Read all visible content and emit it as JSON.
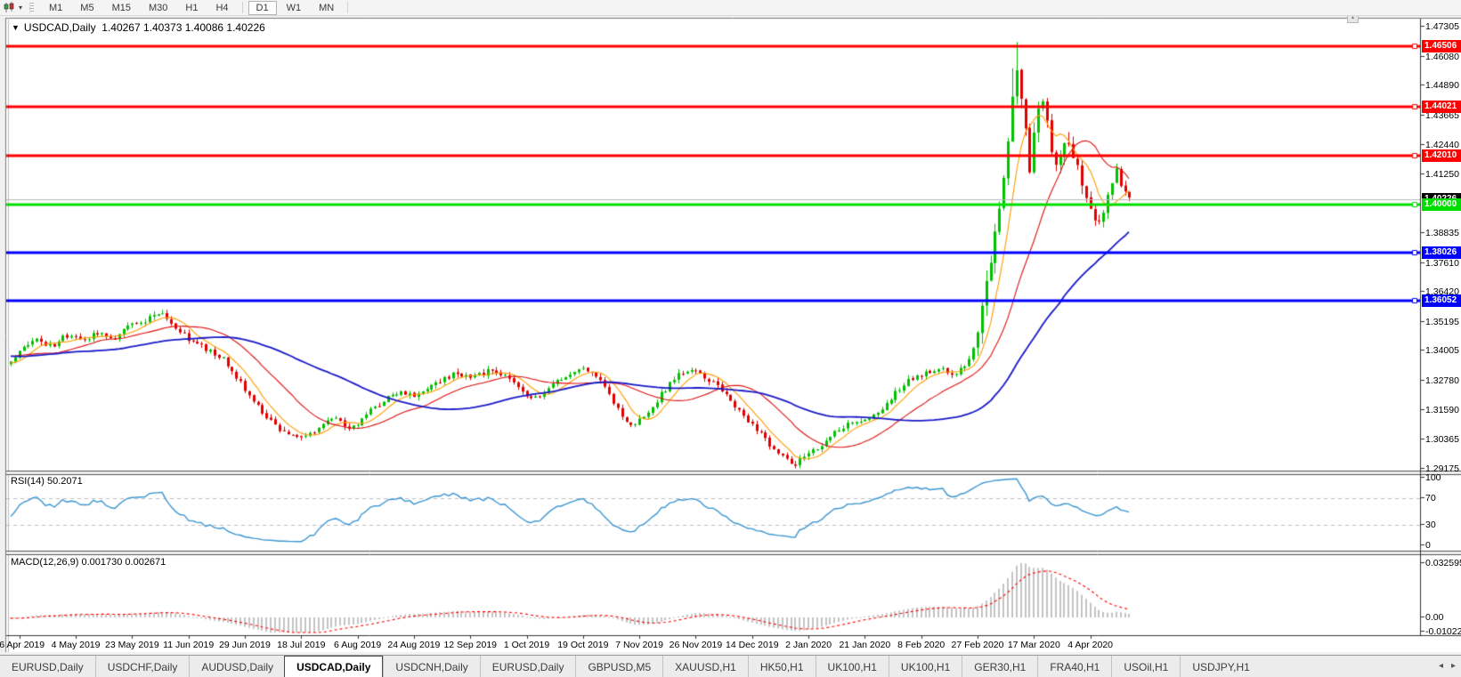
{
  "icons": {
    "dropdown": "▾",
    "title_marker": "▼",
    "scroll_left": "◂",
    "scroll_right": "▸",
    "scroll_stub": "▴"
  },
  "toolbar": {
    "timeframes": [
      "M1",
      "M5",
      "M15",
      "M30",
      "H1",
      "H4",
      "D1",
      "W1",
      "MN"
    ],
    "active": "D1"
  },
  "chart": {
    "title_symbol": "USDCAD,Daily",
    "ohlc_text": "1.40267 1.40373 1.40086 1.40226",
    "y_ticks": [
      "1.47305",
      "1.46080",
      "1.44890",
      "1.43665",
      "1.42440",
      "1.41250",
      "1.38835",
      "1.37610",
      "1.36420",
      "1.35195",
      "1.34005",
      "1.32780",
      "1.31590",
      "1.30365",
      "1.29175"
    ],
    "x_dates": [
      "16 Apr 2019",
      "4 May 2019",
      "23 May 2019",
      "11 Jun 2019",
      "29 Jun 2019",
      "18 Jul 2019",
      "6 Aug 2019",
      "24 Aug 2019",
      "12 Sep 2019",
      "1 Oct 2019",
      "19 Oct 2019",
      "7 Nov 2019",
      "26 Nov 2019",
      "14 Dec 2019",
      "2 Jan 2020",
      "21 Jan 2020",
      "8 Feb 2020",
      "27 Feb 2020",
      "17 Mar 2020",
      "4 Apr 2020"
    ],
    "hlines": [
      {
        "price": 1.46506,
        "label": "1.46506",
        "color": "#ff0000"
      },
      {
        "price": 1.44021,
        "label": "1.44021",
        "color": "#ff0000"
      },
      {
        "price": 1.4201,
        "label": "1.42010",
        "color": "#ff0000"
      },
      {
        "price": 1.4,
        "label": "1.40000",
        "color": "#00dd00"
      },
      {
        "price": 1.38026,
        "label": "1.38026",
        "color": "#0000ff"
      },
      {
        "price": 1.36052,
        "label": "1.36052",
        "color": "#0000ff"
      }
    ],
    "current_price": {
      "value": 1.40226,
      "label": "1.40226",
      "line_color": "#b8b8b8",
      "tag_bg": "#000000"
    },
    "colors": {
      "bull": "#00c000",
      "bear": "#e00000",
      "ma_fast": "#ff9c00",
      "ma_mid": "#e01010",
      "ma_slow": "#1a1ac8"
    }
  },
  "rsi": {
    "label": "RSI(14) 50.2071",
    "levels": [
      "100",
      "70",
      "30",
      "0"
    ],
    "line_color": "#3c96d2",
    "level_line_color": "#bdbdbd"
  },
  "macd": {
    "label": "MACD(12,26,9) 0.001730 0.002671",
    "axis": [
      "0.032595",
      "0.00",
      "-0.010227"
    ],
    "hist_color": "#c4c4c4",
    "signal_color": "#ff0000"
  },
  "tabs": {
    "items": [
      "EURUSD,Daily",
      "USDCHF,Daily",
      "AUDUSD,Daily",
      "USDCAD,Daily",
      "USDCNH,Daily",
      "EURUSD,Daily",
      "GBPUSD,M5",
      "XAUUSD,H1",
      "HK50,H1",
      "UK100,H1",
      "UK100,H1",
      "GER30,H1",
      "FRA40,H1",
      "USOil,H1",
      "USDJPY,H1"
    ],
    "active_index": 3
  },
  "chart_data": {
    "type": "candlestick",
    "symbol": "USDCAD",
    "timeframe": "Daily",
    "current_ohlc": {
      "open": 1.40267,
      "high": 1.40373,
      "low": 1.40086,
      "close": 1.40226
    },
    "y_range": [
      1.29175,
      1.47305
    ],
    "extremes": {
      "high": 1.4668,
      "low": 1.2918
    },
    "levels": [
      1.46506,
      1.44021,
      1.4201,
      1.4,
      1.38026,
      1.36052
    ],
    "close_path_anchors": [
      [
        0.0,
        1.336
      ],
      [
        0.01,
        1.3405
      ],
      [
        0.022,
        1.3445
      ],
      [
        0.036,
        1.3415
      ],
      [
        0.05,
        1.3465
      ],
      [
        0.064,
        1.3445
      ],
      [
        0.078,
        1.3475
      ],
      [
        0.092,
        1.3455
      ],
      [
        0.106,
        1.3505
      ],
      [
        0.122,
        1.353
      ],
      [
        0.134,
        1.3555
      ],
      [
        0.148,
        1.349
      ],
      [
        0.162,
        1.344
      ],
      [
        0.176,
        1.3405
      ],
      [
        0.19,
        1.337
      ],
      [
        0.204,
        1.328
      ],
      [
        0.218,
        1.319
      ],
      [
        0.232,
        1.311
      ],
      [
        0.247,
        1.306
      ],
      [
        0.262,
        1.304
      ],
      [
        0.276,
        1.3085
      ],
      [
        0.29,
        1.3125
      ],
      [
        0.302,
        1.307
      ],
      [
        0.316,
        1.3135
      ],
      [
        0.33,
        1.3185
      ],
      [
        0.344,
        1.323
      ],
      [
        0.358,
        1.3215
      ],
      [
        0.372,
        1.325
      ],
      [
        0.386,
        1.3285
      ],
      [
        0.4,
        1.331
      ],
      [
        0.414,
        1.329
      ],
      [
        0.428,
        1.332
      ],
      [
        0.442,
        1.3295
      ],
      [
        0.456,
        1.3235
      ],
      [
        0.47,
        1.32
      ],
      [
        0.484,
        1.3255
      ],
      [
        0.498,
        1.3305
      ],
      [
        0.512,
        1.3335
      ],
      [
        0.526,
        1.329
      ],
      [
        0.54,
        1.3175
      ],
      [
        0.554,
        1.3095
      ],
      [
        0.568,
        1.314
      ],
      [
        0.582,
        1.3225
      ],
      [
        0.596,
        1.33
      ],
      [
        0.61,
        1.333
      ],
      [
        0.624,
        1.328
      ],
      [
        0.638,
        1.323
      ],
      [
        0.652,
        1.315
      ],
      [
        0.666,
        1.308
      ],
      [
        0.68,
        1.301
      ],
      [
        0.694,
        1.295
      ],
      [
        0.7,
        1.2928
      ],
      [
        0.708,
        1.2965
      ],
      [
        0.722,
        1.301
      ],
      [
        0.736,
        1.306
      ],
      [
        0.75,
        1.31
      ],
      [
        0.764,
        1.3125
      ],
      [
        0.778,
        1.3165
      ],
      [
        0.792,
        1.3235
      ],
      [
        0.806,
        1.329
      ],
      [
        0.82,
        1.331
      ],
      [
        0.834,
        1.333
      ],
      [
        0.842,
        1.33
      ],
      [
        0.852,
        1.334
      ],
      [
        0.86,
        1.34
      ],
      [
        0.868,
        1.356
      ],
      [
        0.876,
        1.376
      ],
      [
        0.883,
        1.398
      ],
      [
        0.889,
        1.418
      ],
      [
        0.895,
        1.442
      ],
      [
        0.9,
        1.456
      ],
      [
        0.906,
        1.433
      ],
      [
        0.911,
        1.412
      ],
      [
        0.917,
        1.439
      ],
      [
        0.922,
        1.445
      ],
      [
        0.928,
        1.428
      ],
      [
        0.934,
        1.416
      ],
      [
        0.94,
        1.423
      ],
      [
        0.946,
        1.427
      ],
      [
        0.952,
        1.417
      ],
      [
        0.958,
        1.408
      ],
      [
        0.964,
        1.399
      ],
      [
        0.97,
        1.3925
      ],
      [
        0.976,
        1.3965
      ],
      [
        0.982,
        1.406
      ],
      [
        0.988,
        1.414
      ],
      [
        0.994,
        1.4055
      ],
      [
        1.0,
        1.4023
      ]
    ],
    "indicators": {
      "rsi": {
        "period": 14,
        "current": 50.2071,
        "levels": [
          70,
          30
        ]
      },
      "macd": {
        "fast": 12,
        "slow": 26,
        "signal": 9,
        "current_main": 0.00173,
        "current_signal": 0.002671,
        "axis_max": 0.032595,
        "axis_min": -0.010227
      },
      "moving_averages": [
        {
          "kind": "fast"
        },
        {
          "kind": "mid"
        },
        {
          "kind": "slow"
        }
      ]
    }
  }
}
